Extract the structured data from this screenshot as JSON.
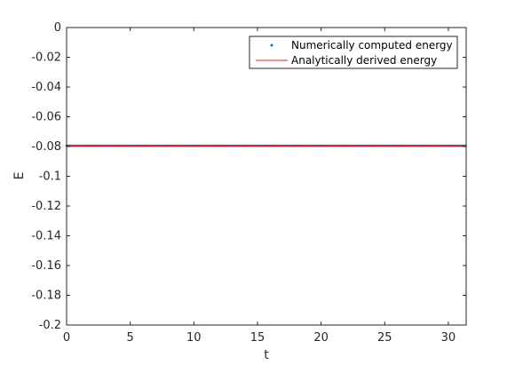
{
  "chart_data": {
    "type": "line",
    "xlabel": "t",
    "ylabel": "E",
    "xlim": [
      0,
      31.4
    ],
    "ylim": [
      -0.2,
      0
    ],
    "x_ticks": [
      0,
      5,
      10,
      15,
      20,
      25,
      30
    ],
    "y_ticks": [
      0,
      -0.02,
      -0.04,
      -0.06,
      -0.08,
      -0.1,
      -0.12,
      -0.14,
      -0.16,
      -0.18,
      -0.2
    ],
    "x_tick_labels": [
      "0",
      "5",
      "10",
      "15",
      "20",
      "25",
      "30"
    ],
    "y_tick_labels": [
      "0",
      "-0.02",
      "-0.04",
      "-0.06",
      "-0.08",
      "-0.1",
      "-0.12",
      "-0.14",
      "-0.16",
      "-0.18",
      "-0.2"
    ],
    "grid": false,
    "legend_position": "top-right",
    "series": [
      {
        "name": "Numerically computed energy",
        "style": "markers",
        "color": "#0072bd",
        "x": [
          0,
          31.4
        ],
        "y": [
          -0.0795,
          -0.0795
        ]
      },
      {
        "name": "Analytically derived energy",
        "style": "line",
        "color": "#d62728",
        "x": [
          0,
          31.4
        ],
        "y": [
          -0.0798,
          -0.0798
        ]
      }
    ]
  }
}
